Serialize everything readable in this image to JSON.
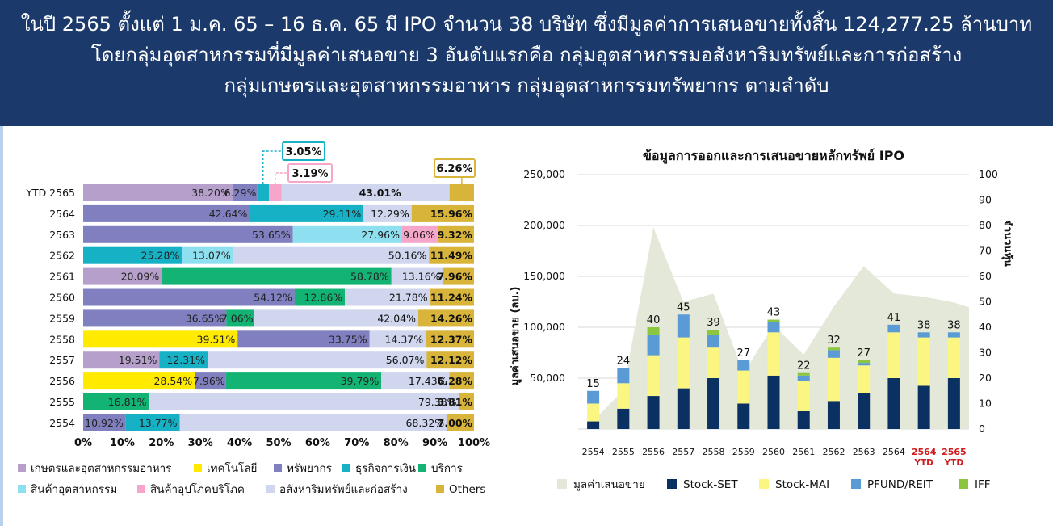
{
  "header": {
    "line1": "ในปี 2565 ตั้งแต่ 1 ม.ค. 65 – 16 ธ.ค. 65 มี IPO จำนวน 38 บริษัท ซึ่งมีมูลค่าการเสนอขายทั้งสิ้น 124,277.25 ล้านบาท",
    "line2": "โดยกลุ่มอุตสาหกรรมที่มีมูลค่าเสนอขาย 3 อันดับแรกคือ กลุ่มอุตสาหกรรมอสังหาริมทรัพย์และการก่อสร้าง",
    "line3": "กลุ่มเกษตรและอุตสาหกรรมอาหาร กลุ่มอุตสาหกรรมทรัพยากร ตามลำดับ"
  },
  "chart_data": [
    {
      "type": "bar",
      "orientation": "horizontal-stacked-100",
      "title": "",
      "xlabel": "",
      "ylabel": "",
      "xlim": [
        0,
        100
      ],
      "x_ticks": [
        "0%",
        "10%",
        "20%",
        "30%",
        "40%",
        "50%",
        "60%",
        "70%",
        "80%",
        "90%",
        "100%"
      ],
      "legend_position": "bottom",
      "colors": {
        "agro": "#b79fcb",
        "tech": "#ffea00",
        "resource": "#8080c0",
        "financial": "#17b1c5",
        "services": "#13b374",
        "industrial": "#8ee0f0",
        "consumer": "#f6a6c8",
        "property": "#cfd6ee",
        "others": "#d8b43a"
      },
      "legend": [
        {
          "key": "agro",
          "label": "เกษตรและอุตสาหกรรมอาหาร"
        },
        {
          "key": "tech",
          "label": "เทคโนโลยี"
        },
        {
          "key": "resource",
          "label": "ทรัพยากร"
        },
        {
          "key": "financial",
          "label": "ธุรกิจการเงิน"
        },
        {
          "key": "services",
          "label": "บริการ"
        },
        {
          "key": "industrial",
          "label": "สินค้าอุตสาหกรรม"
        },
        {
          "key": "consumer",
          "label": "สินค้าอุปโภคบริโภค"
        },
        {
          "key": "property",
          "label": "อสังหาริมทรัพย์และก่อสร้าง"
        },
        {
          "key": "others",
          "label": "Others"
        }
      ],
      "rows": [
        {
          "label": "YTD 2565",
          "segments": [
            {
              "key": "agro",
              "value": 38.2,
              "text": "38.20%"
            },
            {
              "key": "resource",
              "value": 6.29,
              "text": "6.29%"
            },
            {
              "key": "financial",
              "value": 3.05,
              "text": "3.05%",
              "callout": true
            },
            {
              "key": "consumer",
              "value": 3.19,
              "text": "3.19%",
              "callout": true
            },
            {
              "key": "property",
              "value": 43.01,
              "text": "43.01%"
            },
            {
              "key": "others",
              "value": 6.26,
              "text": "6.26%",
              "callout": true
            }
          ]
        },
        {
          "label": "2564",
          "segments": [
            {
              "key": "resource",
              "value": 42.64,
              "text": "42.64%"
            },
            {
              "key": "financial",
              "value": 29.11,
              "text": "29.11%"
            },
            {
              "key": "property",
              "value": 12.29,
              "text": "12.29%"
            },
            {
              "key": "others",
              "value": 15.96,
              "text": "15.96%"
            }
          ]
        },
        {
          "label": "2563",
          "segments": [
            {
              "key": "resource",
              "value": 53.65,
              "text": "53.65%"
            },
            {
              "key": "industrial",
              "value": 27.96,
              "text": "27.96%"
            },
            {
              "key": "consumer",
              "value": 9.06,
              "text": "9.06%"
            },
            {
              "key": "others",
              "value": 9.32,
              "text": "9.32%"
            }
          ]
        },
        {
          "label": "2562",
          "segments": [
            {
              "key": "financial",
              "value": 25.28,
              "text": "25.28%"
            },
            {
              "key": "industrial",
              "value": 13.07,
              "text": "13.07%"
            },
            {
              "key": "property",
              "value": 50.16,
              "text": "50.16%"
            },
            {
              "key": "others",
              "value": 11.49,
              "text": "11.49%"
            }
          ]
        },
        {
          "label": "2561",
          "segments": [
            {
              "key": "agro",
              "value": 20.09,
              "text": "20.09%"
            },
            {
              "key": "services",
              "value": 58.78,
              "text": "58.78%"
            },
            {
              "key": "property",
              "value": 13.16,
              "text": "13.16%"
            },
            {
              "key": "others",
              "value": 7.96,
              "text": "7.96%"
            }
          ]
        },
        {
          "label": "2560",
          "segments": [
            {
              "key": "resource",
              "value": 54.12,
              "text": "54.12%"
            },
            {
              "key": "services",
              "value": 12.86,
              "text": "12.86%"
            },
            {
              "key": "property",
              "value": 21.78,
              "text": "21.78%"
            },
            {
              "key": "others",
              "value": 11.24,
              "text": "11.24%"
            }
          ]
        },
        {
          "label": "2559",
          "segments": [
            {
              "key": "resource",
              "value": 36.65,
              "text": "36.65%"
            },
            {
              "key": "services",
              "value": 7.06,
              "text": "7.06%"
            },
            {
              "key": "property",
              "value": 42.04,
              "text": "42.04%"
            },
            {
              "key": "others",
              "value": 14.26,
              "text": "14.26%"
            }
          ]
        },
        {
          "label": "2558",
          "segments": [
            {
              "key": "tech",
              "value": 39.51,
              "text": "39.51%"
            },
            {
              "key": "resource",
              "value": 33.75,
              "text": "33.75%"
            },
            {
              "key": "property",
              "value": 14.37,
              "text": "14.37%"
            },
            {
              "key": "others",
              "value": 12.37,
              "text": "12.37%"
            }
          ]
        },
        {
          "label": "2557",
          "segments": [
            {
              "key": "agro",
              "value": 19.51,
              "text": "19.51%"
            },
            {
              "key": "financial",
              "value": 12.31,
              "text": "12.31%"
            },
            {
              "key": "property",
              "value": 56.07,
              "text": "56.07%"
            },
            {
              "key": "others",
              "value": 12.12,
              "text": "12.12%"
            }
          ]
        },
        {
          "label": "2556",
          "segments": [
            {
              "key": "tech",
              "value": 28.54,
              "text": "28.54%"
            },
            {
              "key": "resource",
              "value": 7.96,
              "text": "7.96%"
            },
            {
              "key": "services",
              "value": 39.79,
              "text": "39.79%"
            },
            {
              "key": "property",
              "value": 17.43,
              "text": "17.43%"
            },
            {
              "key": "others",
              "value": 6.28,
              "text": "6.28%"
            }
          ]
        },
        {
          "label": "2555",
          "segments": [
            {
              "key": "services",
              "value": 16.81,
              "text": "16.81%"
            },
            {
              "key": "property",
              "value": 79.38,
              "text": "79.38%"
            },
            {
              "key": "others",
              "value": 3.81,
              "text": "3.81%"
            }
          ]
        },
        {
          "label": "2554",
          "segments": [
            {
              "key": "resource",
              "value": 10.92,
              "text": "10.92%"
            },
            {
              "key": "financial",
              "value": 13.77,
              "text": "13.77%"
            },
            {
              "key": "property",
              "value": 68.32,
              "text": "68.32%"
            },
            {
              "key": "others",
              "value": 7.0,
              "text": "7.00%"
            }
          ]
        }
      ]
    },
    {
      "type": "bar",
      "subtype": "stacked-bar-with-area",
      "title": "ข้อมูลการออกและการเสนอขายหลักทรัพย์ IPO",
      "ylabel": "มูลค่าเสนอขาย (ลบ.)",
      "y2label": "จำนวนหุ้น",
      "ylim": [
        0,
        250000
      ],
      "y2lim": [
        0,
        100
      ],
      "y_ticks": [
        "50,000",
        "100,000",
        "150,000",
        "200,000",
        "250,000"
      ],
      "y2_ticks": [
        "0",
        "10",
        "20",
        "30",
        "40",
        "50",
        "60",
        "70",
        "80",
        "90",
        "100"
      ],
      "categories": [
        "2554",
        "2555",
        "2556",
        "2557",
        "2558",
        "2559",
        "2560",
        "2561",
        "2562",
        "2563",
        "2564",
        "2564 YTD",
        "2565 YTD"
      ],
      "red_categories": [
        11,
        12
      ],
      "counts": [
        15,
        24,
        40,
        45,
        39,
        27,
        43,
        22,
        32,
        27,
        41,
        38,
        38
      ],
      "area_name": "มูลค่าเสนอขาย",
      "area_values": [
        8000,
        38000,
        198000,
        125000,
        133000,
        55000,
        102000,
        73000,
        120000,
        160000,
        133000,
        130000,
        124277
      ],
      "colors": {
        "area": "#e3e8d8",
        "set": "#0a3161",
        "mai": "#fbf682",
        "reit": "#5b9bd5",
        "iff": "#8cc53e"
      },
      "series": [
        {
          "name": "Stock-SET",
          "key": "set",
          "values": [
            3,
            8,
            13,
            16,
            20,
            10,
            21,
            7,
            11,
            14,
            20,
            17,
            20
          ]
        },
        {
          "name": "Stock-MAI",
          "key": "mai",
          "values": [
            7,
            10,
            16,
            20,
            12,
            13,
            17,
            12,
            17,
            11,
            18,
            19,
            16
          ]
        },
        {
          "name": "PFUND/REIT",
          "key": "reit",
          "values": [
            5,
            6,
            8,
            9,
            5,
            4,
            4,
            2,
            3,
            1,
            3,
            2,
            2
          ]
        },
        {
          "name": "IFF",
          "key": "iff",
          "values": [
            0,
            0,
            3,
            0,
            2,
            0,
            1,
            1,
            1,
            1,
            0,
            0,
            0
          ]
        }
      ]
    }
  ]
}
